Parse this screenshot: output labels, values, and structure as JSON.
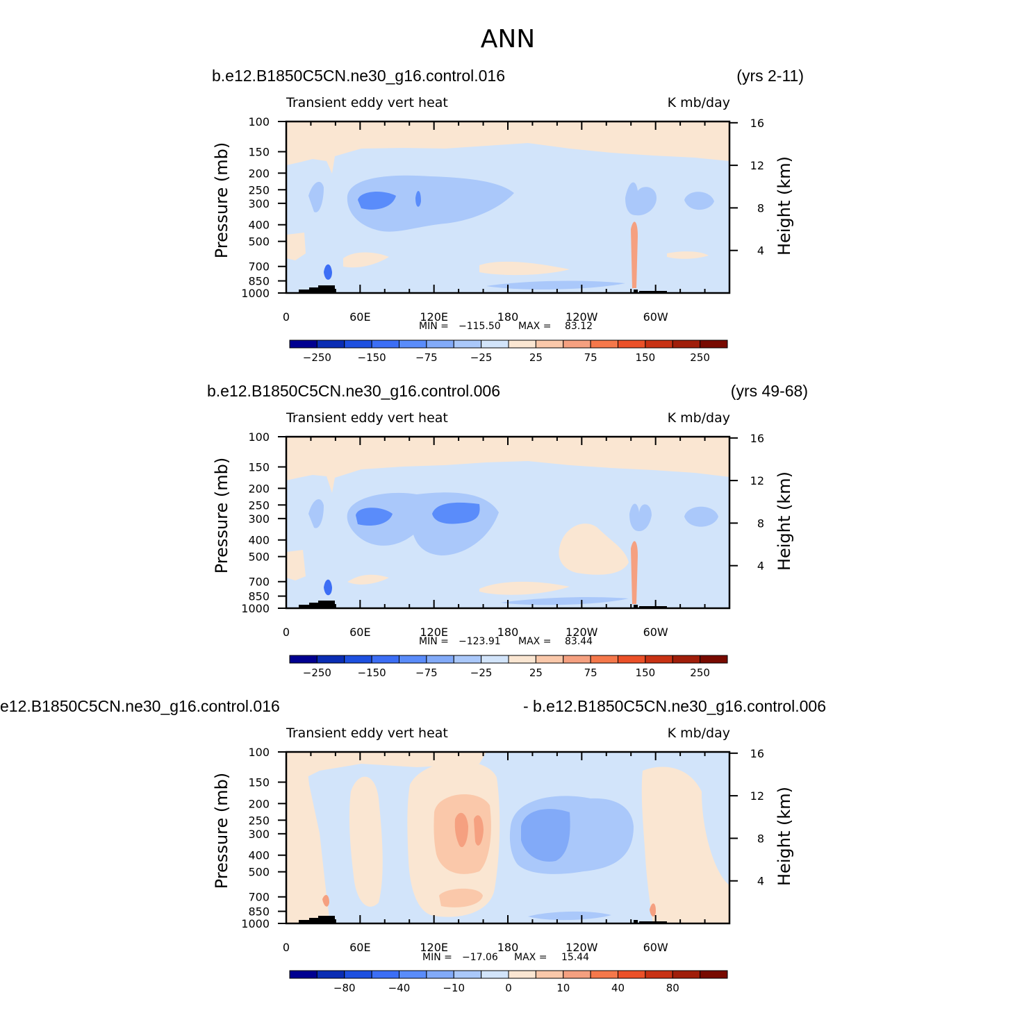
{
  "title": "ANN",
  "palette": [
    "#000090",
    "#0a2db4",
    "#1e50e0",
    "#3c6ef5",
    "#5a8cfa",
    "#82aaf8",
    "#aac8fa",
    "#d2e4fa",
    "#fae6d2",
    "#fac8aa",
    "#f5a080",
    "#f5784b",
    "#eb5028",
    "#c83214",
    "#a01e0a",
    "#780a00"
  ],
  "chart_data": [
    {
      "type": "heatmap",
      "case": "b.e12.B1850C5CN.ne30_g16.control.016",
      "years": "(yrs 2-11)",
      "field": "Transient eddy vert heat",
      "units": "K mb/day",
      "ylabel": "Pressure (mb)",
      "ylabel_right": "Height (km)",
      "min_label": "MIN = ",
      "min_value": "−115.50",
      "max_label": "MAX = ",
      "max_value": "83.12",
      "xticks": [
        "0",
        "60E",
        "120E",
        "180",
        "120W",
        "60W"
      ],
      "xlim": [
        0,
        360
      ],
      "yticks": [
        "100",
        "150",
        "200",
        "250",
        "300",
        "400",
        "500",
        "700",
        "850",
        "1000"
      ],
      "ylim": [
        1000,
        100
      ],
      "height_ticks": [
        "16",
        "12",
        "8",
        "4"
      ],
      "colorbar_labels": [
        "−250",
        "−150",
        "−75",
        "−25",
        "25",
        "75",
        "150",
        "250"
      ],
      "contour_levels": [
        -300,
        -250,
        -200,
        -150,
        -100,
        -75,
        -50,
        -25,
        0,
        25,
        50,
        75,
        100,
        150,
        200,
        250,
        300
      ]
    },
    {
      "type": "heatmap",
      "case": "b.e12.B1850C5CN.ne30_g16.control.006",
      "years": "(yrs 49-68)",
      "field": "Transient eddy vert heat",
      "units": "K mb/day",
      "ylabel": "Pressure (mb)",
      "ylabel_right": "Height (km)",
      "min_label": "MIN = ",
      "min_value": "−123.91",
      "max_label": "MAX = ",
      "max_value": "83.44",
      "xticks": [
        "0",
        "60E",
        "120E",
        "180",
        "120W",
        "60W"
      ],
      "xlim": [
        0,
        360
      ],
      "yticks": [
        "100",
        "150",
        "200",
        "250",
        "300",
        "400",
        "500",
        "700",
        "850",
        "1000"
      ],
      "ylim": [
        1000,
        100
      ],
      "height_ticks": [
        "16",
        "12",
        "8",
        "4"
      ],
      "colorbar_labels": [
        "−250",
        "−150",
        "−75",
        "−25",
        "25",
        "75",
        "150",
        "250"
      ],
      "contour_levels": [
        -300,
        -250,
        -200,
        -150,
        -100,
        -75,
        -50,
        -25,
        0,
        25,
        50,
        75,
        100,
        150,
        200,
        250,
        300
      ]
    },
    {
      "type": "heatmap",
      "case": "e12.B1850C5CN.ne30_g16.control.016",
      "years": "- b.e12.B1850C5CN.ne30_g16.control.006",
      "field": "Transient eddy vert heat",
      "units": "K mb/day",
      "ylabel": "Pressure (mb)",
      "ylabel_right": "Height (km)",
      "min_label": "MIN = ",
      "min_value": "−17.06",
      "max_label": "MAX = ",
      "max_value": "15.44",
      "xticks": [
        "0",
        "60E",
        "120E",
        "180",
        "120W",
        "60W"
      ],
      "xlim": [
        0,
        360
      ],
      "yticks": [
        "100",
        "150",
        "200",
        "250",
        "300",
        "400",
        "500",
        "700",
        "850",
        "1000"
      ],
      "ylim": [
        1000,
        100
      ],
      "height_ticks": [
        "16",
        "12",
        "8",
        "4"
      ],
      "colorbar_labels": [
        "−80",
        "−40",
        "−10",
        "0",
        "10",
        "40",
        "80"
      ],
      "contour_levels": [
        -100,
        -80,
        -60,
        -40,
        -20,
        -10,
        -5,
        0,
        5,
        10,
        20,
        40,
        60,
        80,
        100
      ]
    }
  ]
}
